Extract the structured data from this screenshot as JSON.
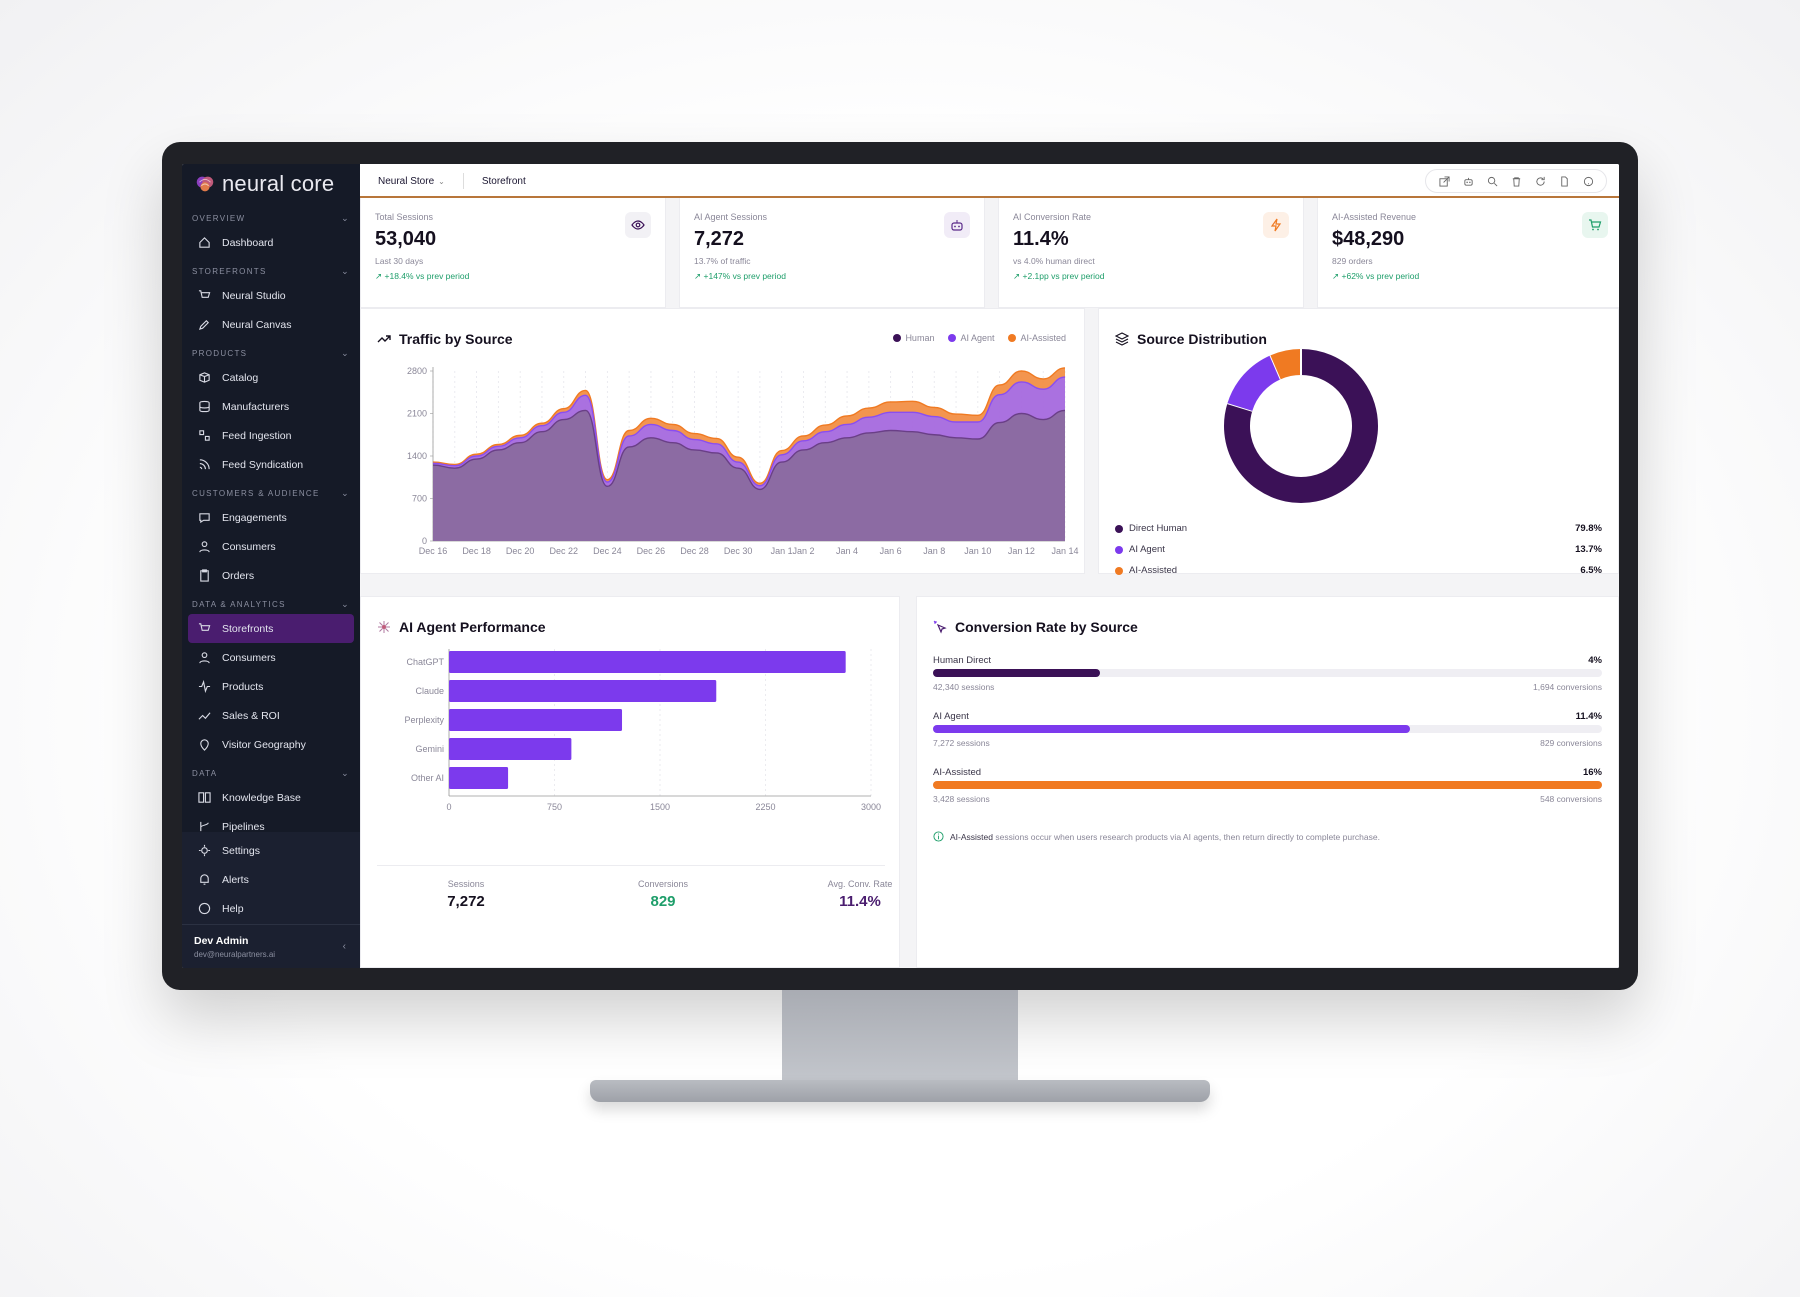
{
  "brand": {
    "name": "neural core"
  },
  "sidebar": {
    "sections": [
      {
        "title": "OVERVIEW",
        "items": [
          {
            "label": "Dashboard",
            "icon": "home-icon"
          }
        ]
      },
      {
        "title": "STOREFRONTS",
        "items": [
          {
            "label": "Neural Studio",
            "icon": "cart-icon"
          },
          {
            "label": "Neural Canvas",
            "icon": "brush-icon"
          }
        ]
      },
      {
        "title": "PRODUCTS",
        "items": [
          {
            "label": "Catalog",
            "icon": "box-icon"
          },
          {
            "label": "Manufacturers",
            "icon": "database-icon"
          },
          {
            "label": "Feed Ingestion",
            "icon": "shapes-icon"
          },
          {
            "label": "Feed Syndication",
            "icon": "rss-icon"
          }
        ]
      },
      {
        "title": "CUSTOMERS & AUDIENCE",
        "items": [
          {
            "label": "Engagements",
            "icon": "chat-icon"
          },
          {
            "label": "Consumers",
            "icon": "user-icon"
          },
          {
            "label": "Orders",
            "icon": "clipboard-icon"
          }
        ]
      },
      {
        "title": "DATA & ANALYTICS",
        "items": [
          {
            "label": "Storefronts",
            "icon": "cart-icon",
            "active": true
          },
          {
            "label": "Consumers",
            "icon": "user-icon"
          },
          {
            "label": "Products",
            "icon": "activity-icon"
          },
          {
            "label": "Sales & ROI",
            "icon": "trend-icon"
          },
          {
            "label": "Visitor Geography",
            "icon": "pin-icon"
          }
        ]
      },
      {
        "title": "DATA",
        "items": [
          {
            "label": "Knowledge Base",
            "icon": "book-icon"
          },
          {
            "label": "Pipelines",
            "icon": "branch-icon"
          }
        ]
      }
    ],
    "bottom": [
      {
        "label": "Settings",
        "icon": "gear-icon"
      },
      {
        "label": "Alerts",
        "icon": "bell-icon"
      },
      {
        "label": "Help",
        "icon": "help-icon"
      }
    ],
    "user": {
      "name": "Dev Admin",
      "email": "dev@neuralpartners.ai"
    }
  },
  "topbar": {
    "store": "Neural Store",
    "section": "Storefront"
  },
  "kpis": [
    {
      "label": "Total Sessions",
      "value": "53,040",
      "sub": "Last 30 days",
      "delta": "+18.4% vs prev period",
      "icon": "eye-icon",
      "badge_color": "#f2f1f5"
    },
    {
      "label": "AI Agent Sessions",
      "value": "7,272",
      "sub": "13.7% of traffic",
      "delta": "+147% vs prev period",
      "icon": "robot-icon",
      "badge_color": "#f1ecf7"
    },
    {
      "label": "AI Conversion Rate",
      "value": "11.4%",
      "sub": "vs 4.0% human direct",
      "delta": "+2.1pp vs prev period",
      "icon": "bolt-icon",
      "badge_color": "#fdf0e6"
    },
    {
      "label": "AI-Assisted Revenue",
      "value": "$48,290",
      "sub": "829 orders",
      "delta": "+62% vs prev period",
      "icon": "cart-icon",
      "badge_color": "#e8f6ef"
    }
  ],
  "traffic": {
    "title": "Traffic by Source",
    "legend": [
      "Human",
      "AI Agent",
      "AI-Assisted"
    ],
    "colors": {
      "human": "#8a6a9f",
      "agent": "#a26df0",
      "assisted": "#f28a3c",
      "human_line": "#6a3f87",
      "agent_line": "#8a4ef0",
      "assisted_line": "#f07a22"
    }
  },
  "distribution": {
    "title": "Source Distribution",
    "items": [
      {
        "label": "Direct Human",
        "value": "79.8%",
        "color": "#3b1157"
      },
      {
        "label": "AI Agent",
        "value": "13.7%",
        "color": "#7c3aed"
      },
      {
        "label": "AI-Assisted",
        "value": "6.5%",
        "color": "#f07a22"
      }
    ]
  },
  "agents": {
    "title": "AI Agent Performance",
    "stats": [
      {
        "label": "Sessions",
        "value": "7,272",
        "color": "#15101f"
      },
      {
        "label": "Conversions",
        "value": "829",
        "color": "#1e9e6a"
      },
      {
        "label": "Avg. Conv. Rate",
        "value": "11.4%",
        "color": "#4a1d6f"
      }
    ]
  },
  "conversion": {
    "title": "Conversion Rate by Source",
    "rows": [
      {
        "label": "Human Direct",
        "pct": "4%",
        "fill": 0.25,
        "sessions": "42,340 sessions",
        "conversions": "1,694 conversions",
        "color": "#3b1157"
      },
      {
        "label": "AI Agent",
        "pct": "11.4%",
        "fill": 0.713,
        "sessions": "7,272 sessions",
        "conversions": "829 conversions",
        "color": "#7c3aed"
      },
      {
        "label": "AI-Assisted",
        "pct": "16%",
        "fill": 1.0,
        "sessions": "3,428 sessions",
        "conversions": "548 conversions",
        "color": "#f07a22"
      }
    ],
    "note_strong": "AI-Assisted",
    "note": "sessions occur when users research products via AI agents, then return directly to complete purchase."
  },
  "chart_data": [
    {
      "type": "area",
      "title": "Traffic by Source",
      "x": [
        "Dec 16",
        "Dec 17",
        "Dec 18",
        "Dec 19",
        "Dec 20",
        "Dec 21",
        "Dec 22",
        "Dec 23",
        "Dec 24",
        "Dec 25",
        "Dec 26",
        "Dec 27",
        "Dec 28",
        "Dec 29",
        "Dec 30",
        "Dec 31",
        "Jan 1",
        "Jan 2",
        "Jan 3",
        "Jan 4",
        "Jan 5",
        "Jan 6",
        "Jan 7",
        "Jan 8",
        "Jan 9",
        "Jan 10",
        "Jan 11",
        "Jan 12",
        "Jan 13",
        "Jan 14"
      ],
      "xticks": [
        "Dec 16",
        "Dec 18",
        "Dec 20",
        "Dec 22",
        "Dec 24",
        "Dec 26",
        "Dec 28",
        "Dec 30",
        "Jan 1",
        "Jan 2",
        "Jan 4",
        "Jan 6",
        "Jan 8",
        "Jan 10",
        "Jan 12",
        "Jan 14"
      ],
      "stacked": true,
      "series": [
        {
          "name": "Human",
          "values": [
            1250,
            1200,
            1350,
            1500,
            1620,
            1800,
            2000,
            2150,
            900,
            1550,
            1700,
            1620,
            1500,
            1450,
            1200,
            850,
            1300,
            1500,
            1620,
            1700,
            1780,
            1820,
            1800,
            1750,
            1700,
            1680,
            1950,
            2100,
            2000,
            2150
          ]
        },
        {
          "name": "AI Agent",
          "values": [
            30,
            40,
            50,
            60,
            80,
            100,
            120,
            250,
            70,
            180,
            220,
            200,
            170,
            150,
            100,
            60,
            120,
            150,
            180,
            220,
            260,
            300,
            320,
            300,
            260,
            280,
            460,
            520,
            500,
            550
          ]
        },
        {
          "name": "AI-Assisted",
          "values": [
            20,
            20,
            30,
            30,
            40,
            40,
            60,
            80,
            40,
            90,
            100,
            100,
            100,
            90,
            80,
            40,
            70,
            80,
            110,
            140,
            150,
            170,
            180,
            150,
            130,
            110,
            160,
            180,
            170,
            150
          ]
        }
      ],
      "yticks": [
        0,
        700,
        1400,
        2100,
        2800
      ],
      "ylim": [
        0,
        2800
      ]
    },
    {
      "type": "pie",
      "title": "Source Distribution",
      "categories": [
        "Direct Human",
        "AI Agent",
        "AI-Assisted"
      ],
      "values": [
        79.8,
        13.7,
        6.5
      ]
    },
    {
      "type": "bar",
      "title": "AI Agent Performance",
      "orientation": "horizontal",
      "categories": [
        "ChatGPT",
        "Claude",
        "Perplexity",
        "Gemini",
        "Other AI"
      ],
      "values": [
        2820,
        1900,
        1230,
        870,
        420
      ],
      "xticks": [
        0,
        750,
        1500,
        2250,
        3000
      ],
      "xlim": [
        0,
        3000
      ]
    }
  ]
}
